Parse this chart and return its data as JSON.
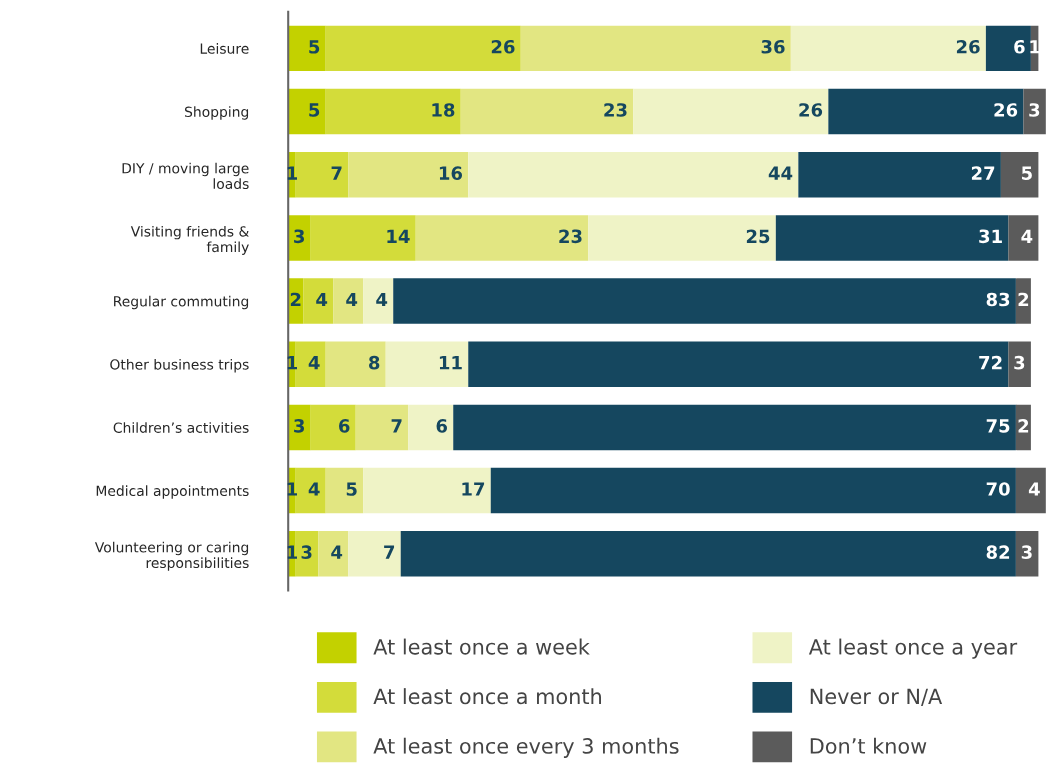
{
  "chart_data": {
    "type": "bar",
    "orientation": "horizontal",
    "stacked": true,
    "data_labels": true,
    "legend": "bottom",
    "grid": false,
    "categories": [
      "Leisure",
      "Shopping",
      "DIY / moving large\nloads",
      "Visiting friends &\nfamily",
      "Regular commuting",
      "Other business trips",
      "Children’s activities",
      "Medical appointments",
      "Volunteering or caring\nresponsibilities"
    ],
    "series": [
      {
        "name": "At least once a week",
        "color": "#c3d100",
        "values": [
          5,
          5,
          1,
          3,
          2,
          1,
          3,
          1,
          1
        ]
      },
      {
        "name": "At least once a month",
        "color": "#d3dc3a",
        "values": [
          26,
          18,
          7,
          14,
          4,
          4,
          6,
          4,
          3
        ]
      },
      {
        "name": "At least once every 3 months",
        "color": "#e2e682",
        "values": [
          36,
          23,
          16,
          23,
          4,
          8,
          7,
          5,
          4
        ]
      },
      {
        "name": "At least once a year",
        "color": "#eff3c6",
        "values": [
          26,
          26,
          44,
          25,
          4,
          11,
          6,
          17,
          7
        ]
      },
      {
        "name": "Never or N/A",
        "color": "#15475f",
        "values": [
          6,
          26,
          27,
          31,
          83,
          72,
          75,
          70,
          82
        ]
      },
      {
        "name": "Don’t know",
        "color": "#5b5b5b",
        "values": [
          1,
          3,
          5,
          4,
          2,
          3,
          2,
          4,
          3
        ]
      }
    ]
  }
}
